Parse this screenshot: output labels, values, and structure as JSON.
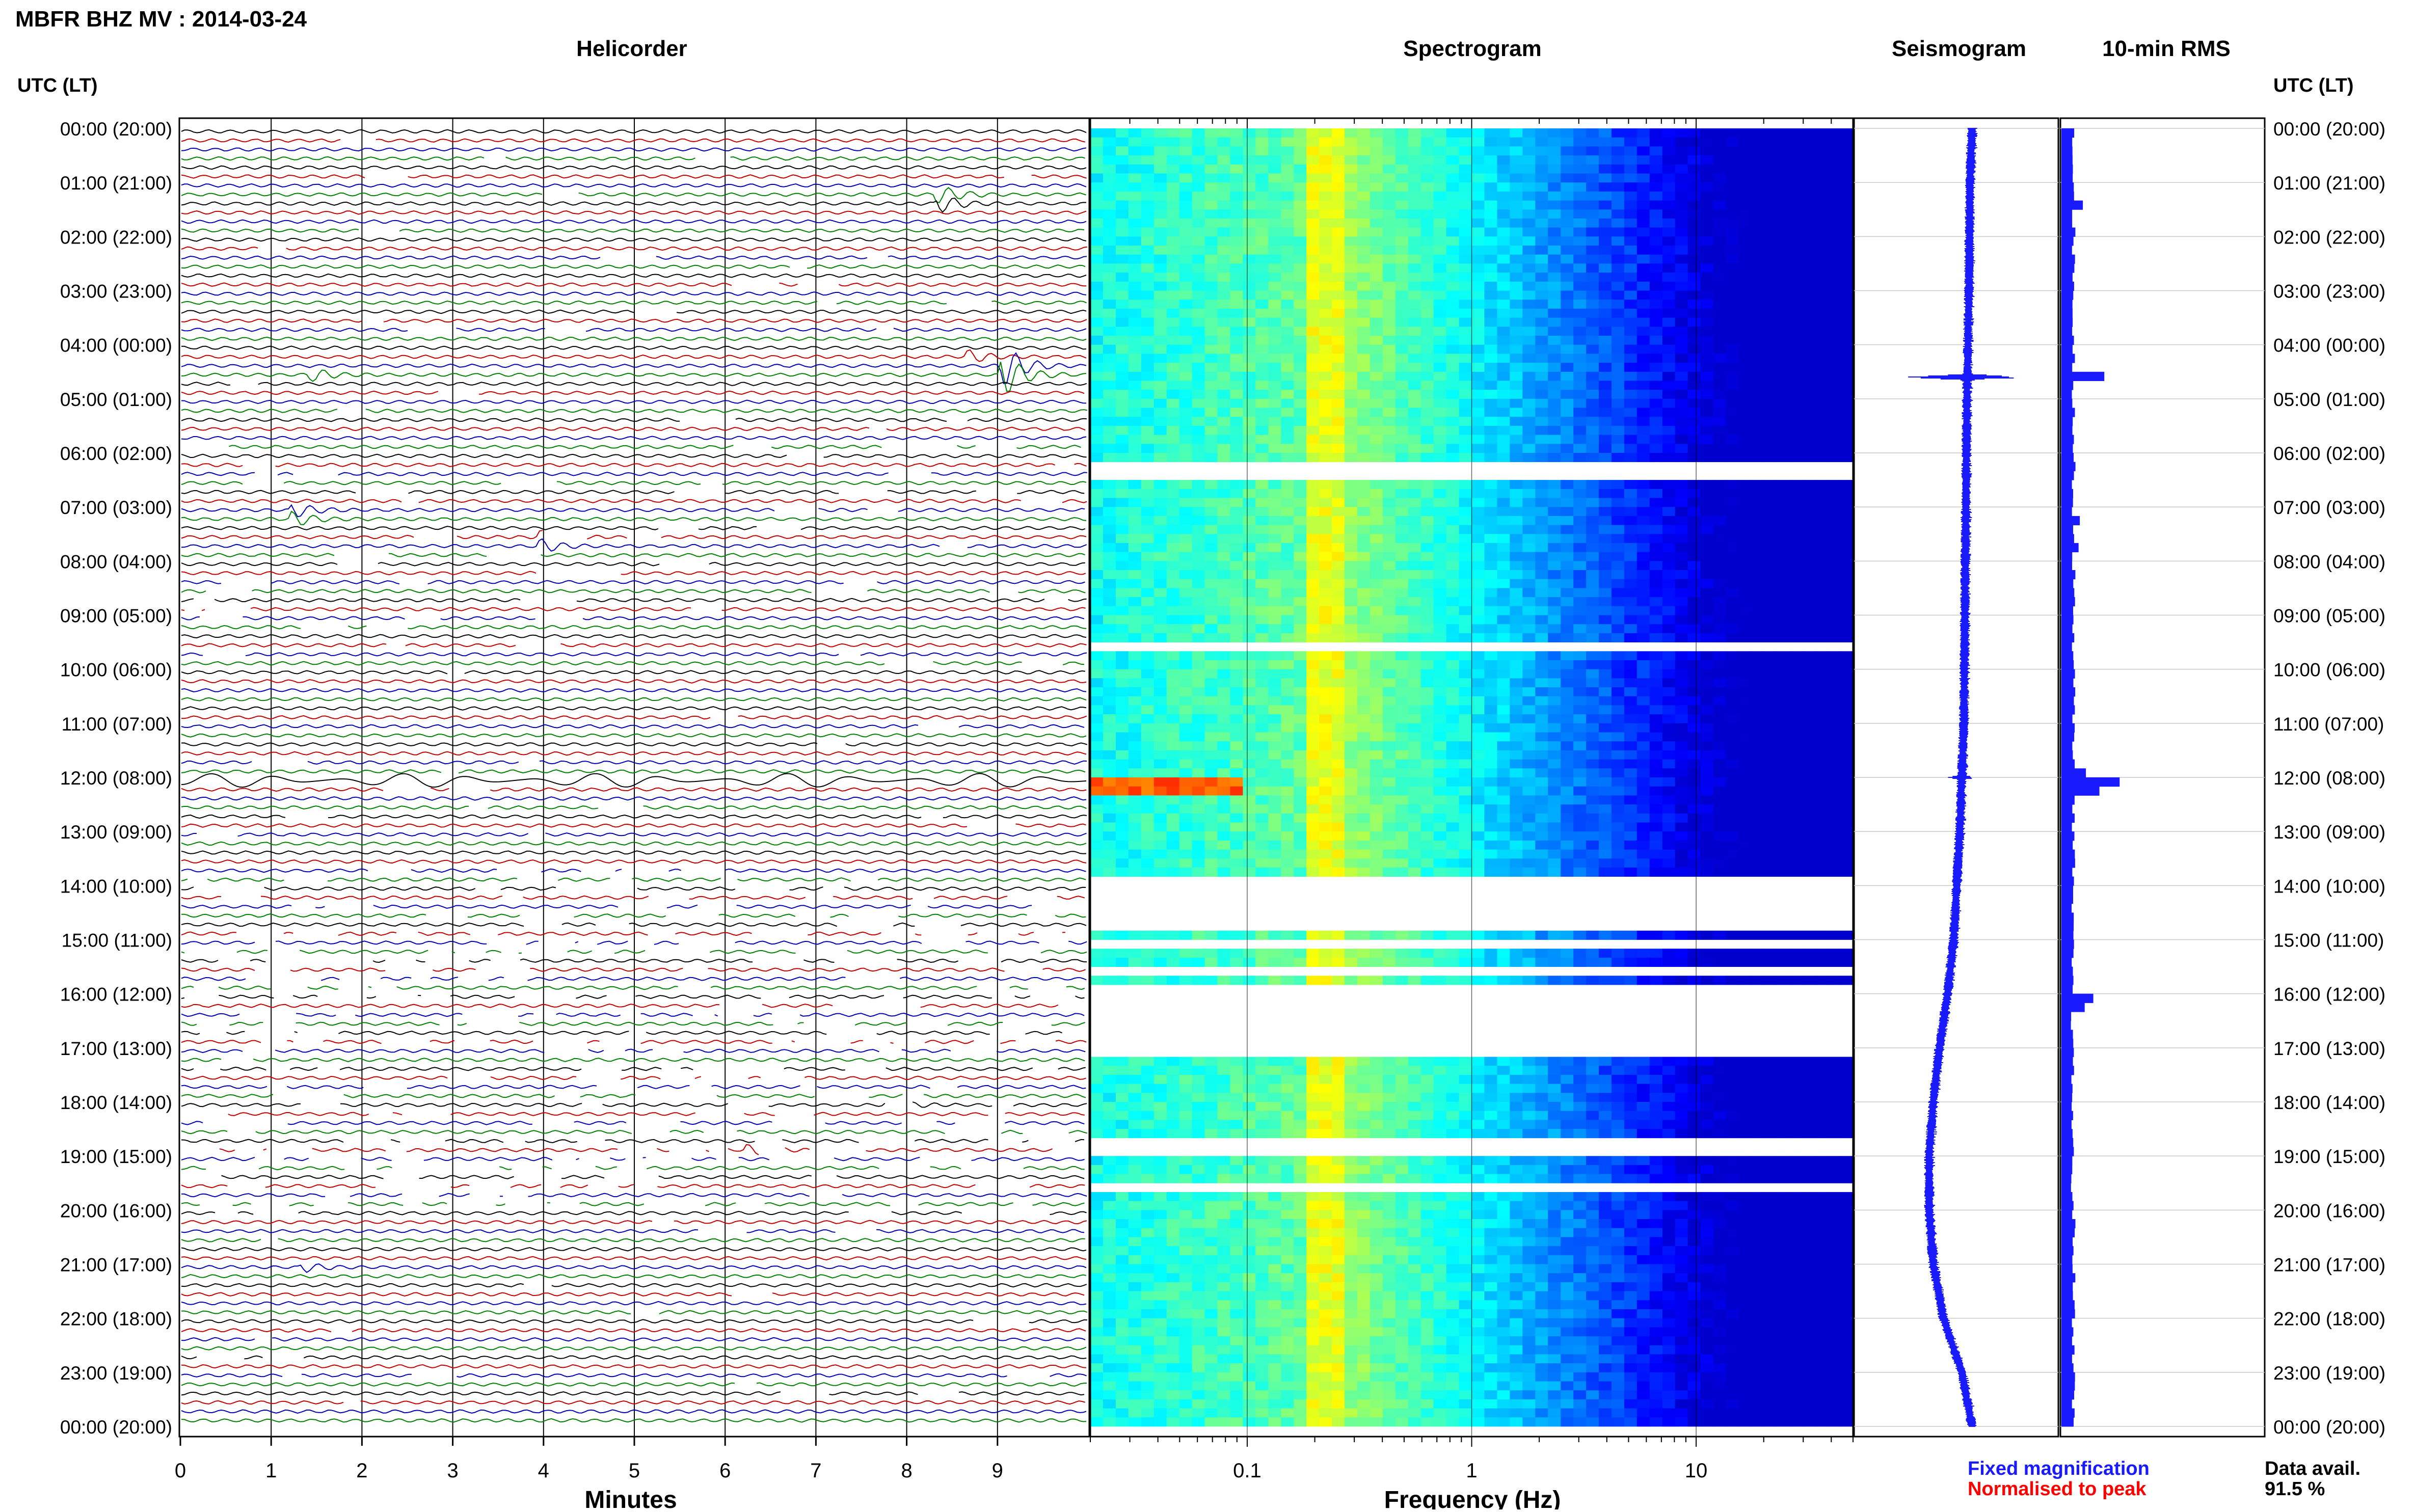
{
  "header": {
    "title": "MBFR BHZ MV : 2014-03-24",
    "left_axis_label": "UTC (LT)",
    "right_axis_label": "UTC (LT)"
  },
  "panels": {
    "helicorder": "Helicorder",
    "spectrogram": "Spectrogram",
    "seismogram": "Seismogram",
    "rms": "10-min RMS"
  },
  "time_labels": [
    "00:00 (20:00)",
    "01:00 (21:00)",
    "02:00 (22:00)",
    "03:00 (23:00)",
    "04:00 (00:00)",
    "05:00 (01:00)",
    "06:00 (02:00)",
    "07:00 (03:00)",
    "08:00 (04:00)",
    "09:00 (05:00)",
    "10:00 (06:00)",
    "11:00 (07:00)",
    "12:00 (08:00)",
    "13:00 (09:00)",
    "14:00 (10:00)",
    "15:00 (11:00)",
    "16:00 (12:00)",
    "17:00 (13:00)",
    "18:00 (14:00)",
    "19:00 (15:00)",
    "20:00 (16:00)",
    "21:00 (17:00)",
    "22:00 (18:00)",
    "23:00 (19:00)",
    "00:00 (20:00)"
  ],
  "legend": {
    "fixed": "Fixed magnification",
    "normalised": "Normalised to peak",
    "fixed_color": "#1a1aff",
    "normalised_color": "#ff0000"
  },
  "data_avail": {
    "label": "Data avail.",
    "value": "91.5 %"
  },
  "chart_data": [
    {
      "type": "line",
      "panel": "helicorder",
      "xlabel": "Minutes",
      "xticks": [
        "0",
        "1",
        "2",
        "3",
        "4",
        "5",
        "6",
        "7",
        "8",
        "9"
      ],
      "xlim": [
        0,
        10
      ],
      "trace_colors": [
        "#000000",
        "#c00000",
        "#0000b0",
        "#008000"
      ],
      "events": [
        {
          "hour": 1.25,
          "minute": 8.4,
          "amplitude": 2.0
        },
        {
          "hour": 4.4,
          "minute": 9.1,
          "amplitude": 5.0
        },
        {
          "hour": 4.2,
          "minute": 8.7,
          "amplitude": 1.6
        },
        {
          "hour": 4.5,
          "minute": 1.5,
          "amplitude": 1.5
        },
        {
          "hour": 7.1,
          "minute": 1.3,
          "amplitude": 1.7
        },
        {
          "hour": 7.6,
          "minute": 4.0,
          "amplitude": 1.6
        },
        {
          "hour": 18.0,
          "minute": 7.85,
          "amplitude": 1.5
        },
        {
          "hour": 18.8,
          "minute": 6.3,
          "amplitude": 1.2
        },
        {
          "hour": 21.0,
          "minute": 1.4,
          "amplitude": 1.0
        }
      ]
    },
    {
      "type": "heatmap",
      "panel": "spectrogram",
      "xlabel": "Frequency (Hz)",
      "xscale": "log",
      "xlim": [
        0.02,
        50
      ],
      "xticks": [
        "0.1",
        "1",
        "10"
      ],
      "peak_band_hz": [
        0.18,
        0.28
      ],
      "colormap": [
        "#00008f",
        "#0000ff",
        "#0080ff",
        "#00ffff",
        "#80ff80",
        "#ffff00",
        "#ff8000",
        "#ff0000"
      ]
    },
    {
      "type": "line",
      "panel": "seismogram",
      "normalised_drift_points": [
        [
          0,
          0.58
        ],
        [
          1,
          0.57
        ],
        [
          3,
          0.565
        ],
        [
          5,
          0.555
        ],
        [
          7,
          0.55
        ],
        [
          9,
          0.545
        ],
        [
          11,
          0.54
        ],
        [
          13,
          0.52
        ],
        [
          15,
          0.49
        ],
        [
          16,
          0.46
        ],
        [
          17,
          0.42
        ],
        [
          18,
          0.39
        ],
        [
          19,
          0.37
        ],
        [
          20,
          0.37
        ],
        [
          21,
          0.39
        ],
        [
          22,
          0.44
        ],
        [
          23,
          0.53
        ],
        [
          24,
          0.58
        ]
      ],
      "bursts": [
        {
          "hour": 4.6,
          "width": 0.62
        },
        {
          "hour": 12.0,
          "width": 0.14
        },
        {
          "hour": 7.2,
          "width": 0.06
        },
        {
          "hour": 8.0,
          "width": 0.06
        },
        {
          "hour": 16.0,
          "width": 0.05
        }
      ]
    },
    {
      "type": "bar",
      "panel": "rms",
      "orientation": "horizontal",
      "bin_minutes": 10,
      "baseline": 0.2,
      "spikes": [
        {
          "hour": 1.4,
          "value": 0.35
        },
        {
          "hour": 4.55,
          "value": 0.7
        },
        {
          "hour": 11.85,
          "value": 0.4
        },
        {
          "hour": 12.0,
          "value": 0.95
        },
        {
          "hour": 12.1,
          "value": 0.62
        },
        {
          "hour": 16.0,
          "value": 0.52
        },
        {
          "hour": 16.15,
          "value": 0.38
        },
        {
          "hour": 7.2,
          "value": 0.3
        },
        {
          "hour": 7.6,
          "value": 0.28
        }
      ]
    }
  ]
}
